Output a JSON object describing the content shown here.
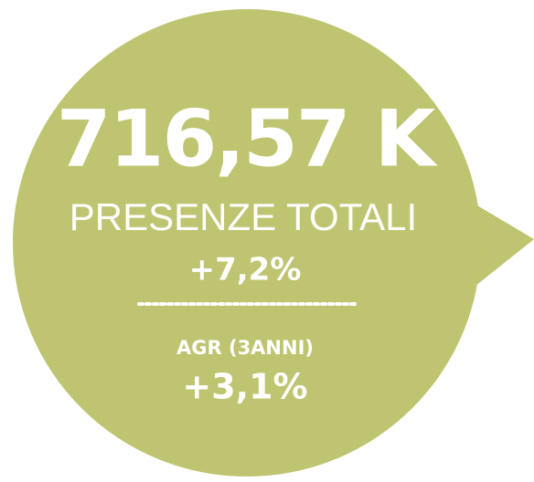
{
  "bubble": {
    "headline": "716,57 K",
    "label": "PRESENZE TOTALI",
    "change": "+7,2%",
    "sublabel": "AGR (3ANNI)",
    "subchange": "+3,1%"
  }
}
